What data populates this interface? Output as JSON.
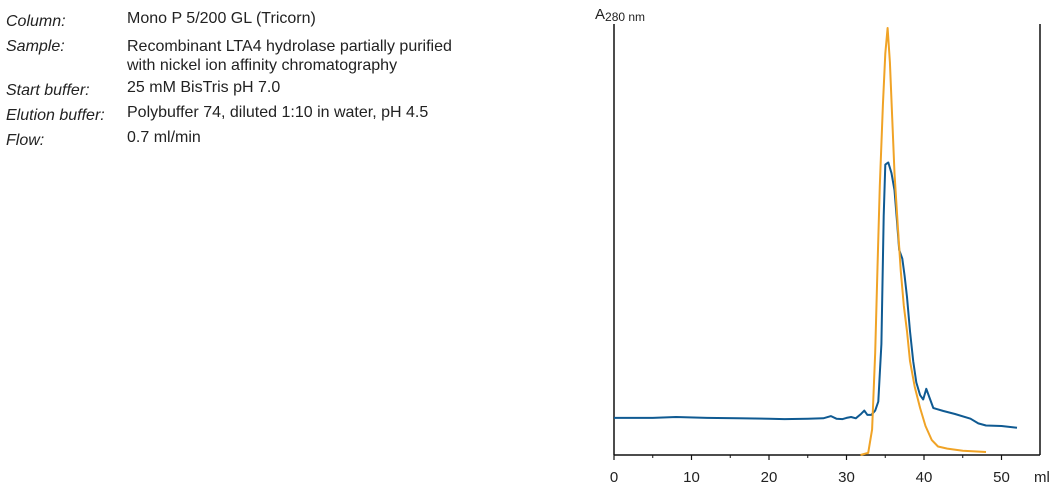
{
  "info": [
    {
      "label": "Column:",
      "value": [
        "Mono P 5/200 GL (Tricorn)"
      ]
    },
    {
      "label": "Sample:",
      "value": [
        "Recombinant LTA4 hydrolase partially purified",
        "with nickel ion affinity chromatography"
      ]
    },
    {
      "label": "Start buffer:",
      "value": [
        "25 mM BisTris pH 7.0"
      ]
    },
    {
      "label": "Elution buffer:",
      "value": [
        "Polybuffer 74, diluted 1:10 in water, pH 4.5"
      ]
    },
    {
      "label": "Flow:",
      "value": [
        "0.7 ml/min"
      ]
    }
  ],
  "chart_data": {
    "type": "line",
    "ylabel_main": "A",
    "ylabel_sub": "280 nm",
    "xlabel": "ml",
    "xlim": [
      0,
      55
    ],
    "xticks": [
      0,
      10,
      20,
      30,
      40,
      50
    ],
    "ylim": [
      0,
      1
    ],
    "grid": false,
    "colors": {
      "axis": "#111111",
      "series1": "#0f5a92",
      "series2": "#f0a326"
    },
    "series": [
      {
        "color": "#0f5a92",
        "points": [
          [
            0,
            0.087
          ],
          [
            5,
            0.087
          ],
          [
            8,
            0.089
          ],
          [
            12,
            0.087
          ],
          [
            16,
            0.086
          ],
          [
            20,
            0.085
          ],
          [
            22,
            0.084
          ],
          [
            25,
            0.085
          ],
          [
            27,
            0.086
          ],
          [
            28,
            0.091
          ],
          [
            28.7,
            0.085
          ],
          [
            29.5,
            0.084
          ],
          [
            30,
            0.087
          ],
          [
            30.6,
            0.089
          ],
          [
            31.2,
            0.086
          ],
          [
            31.8,
            0.095
          ],
          [
            32.3,
            0.104
          ],
          [
            32.7,
            0.094
          ],
          [
            33.2,
            0.094
          ],
          [
            33.7,
            0.104
          ],
          [
            34.1,
            0.125
          ],
          [
            34.5,
            0.26
          ],
          [
            34.8,
            0.56
          ],
          [
            35.0,
            0.68
          ],
          [
            35.4,
            0.685
          ],
          [
            35.8,
            0.66
          ],
          [
            36.2,
            0.62
          ],
          [
            36.5,
            0.55
          ],
          [
            36.8,
            0.48
          ],
          [
            37.2,
            0.46
          ],
          [
            37.5,
            0.42
          ],
          [
            37.8,
            0.37
          ],
          [
            38.2,
            0.29
          ],
          [
            38.6,
            0.22
          ],
          [
            39.0,
            0.17
          ],
          [
            39.5,
            0.14
          ],
          [
            39.9,
            0.13
          ],
          [
            40.3,
            0.155
          ],
          [
            40.7,
            0.135
          ],
          [
            41.2,
            0.11
          ],
          [
            41.6,
            0.108
          ],
          [
            42.5,
            0.103
          ],
          [
            44,
            0.096
          ],
          [
            46,
            0.085
          ],
          [
            47,
            0.074
          ],
          [
            48,
            0.069
          ],
          [
            50,
            0.068
          ],
          [
            52,
            0.064
          ]
        ]
      },
      {
        "color": "#f0a326",
        "points": [
          [
            31.8,
            0.0
          ],
          [
            32.8,
            0.005
          ],
          [
            33.3,
            0.06
          ],
          [
            33.7,
            0.24
          ],
          [
            34.0,
            0.44
          ],
          [
            34.3,
            0.63
          ],
          [
            34.7,
            0.82
          ],
          [
            35.0,
            0.94
          ],
          [
            35.3,
            1.0
          ],
          [
            35.6,
            0.92
          ],
          [
            35.9,
            0.79
          ],
          [
            36.2,
            0.66
          ],
          [
            36.6,
            0.54
          ],
          [
            37.0,
            0.43
          ],
          [
            37.4,
            0.35
          ],
          [
            37.8,
            0.29
          ],
          [
            38.2,
            0.22
          ],
          [
            38.8,
            0.16
          ],
          [
            39.5,
            0.11
          ],
          [
            40.2,
            0.068
          ],
          [
            41.0,
            0.035
          ],
          [
            41.8,
            0.02
          ],
          [
            43,
            0.015
          ],
          [
            45,
            0.01
          ],
          [
            48,
            0.007
          ]
        ]
      }
    ]
  }
}
